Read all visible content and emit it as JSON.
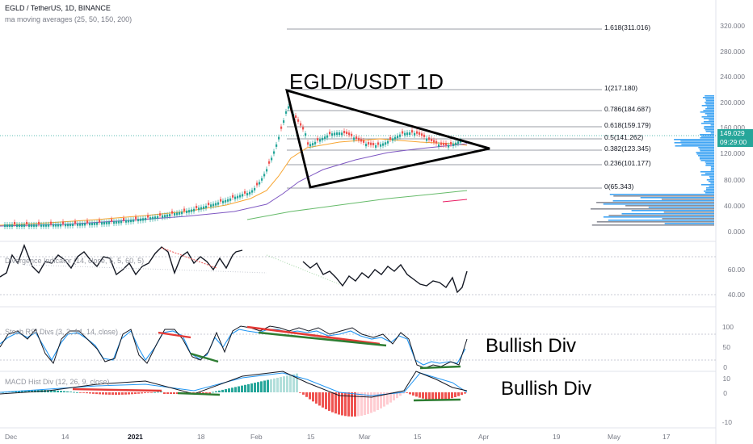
{
  "header": {
    "symbol_line": "EGLD / TetherUS, 1D, BINANCE",
    "ma_line": "ma moving averages (25, 50, 150, 200)"
  },
  "indicators": {
    "divergence": "Divergence Indicator (14, close, 5, 5, 60, 5)",
    "stoch_divs": "Stoch RSI Divs (3, 3, 14, 14, close)",
    "macd_hist": "MACD Hist Div (12, 26, 9, close)"
  },
  "annotations": {
    "title": "EGLD/USDT 1D",
    "bullish_1": "Bullish Div",
    "bullish_2": "Bullish Div"
  },
  "fib_levels": {
    "l1618": "1.618(311.016)",
    "l1": "1(217.180)",
    "l0786": "0.786(184.687)",
    "l0618": "0.618(159.179)",
    "l05": "0.5(141.262)",
    "l0382": "0.382(123.345)",
    "l0236": "0.236(101.177)",
    "l0": "0(65.343)"
  },
  "price_axis": [
    "320.000",
    "280.000",
    "240.000",
    "200.000",
    "160.000",
    "120.000",
    "80.000",
    "40.000",
    "0.000"
  ],
  "price_tag": {
    "price": "149.029",
    "countdown": "09:29:00"
  },
  "rsi_axis": [
    "60.00",
    "40.00"
  ],
  "stoch_axis": [
    "100",
    "50",
    "0"
  ],
  "macd_axis": [
    "10",
    "0",
    "-10"
  ],
  "time_axis": [
    "Dec",
    "14",
    "2021",
    "18",
    "Feb",
    "15",
    "Mar",
    "15",
    "Apr",
    "19",
    "May",
    "17"
  ],
  "colors": {
    "bull": "#26a69a",
    "bear": "#ef5350",
    "ma25": "#f7a531",
    "ma50": "#7e57c2",
    "ma150": "#66bb6a",
    "stoch_k": "#2196f3",
    "div_red": "#e53935",
    "div_green": "#2e7d32",
    "volume_profile": "#2196f3"
  }
}
